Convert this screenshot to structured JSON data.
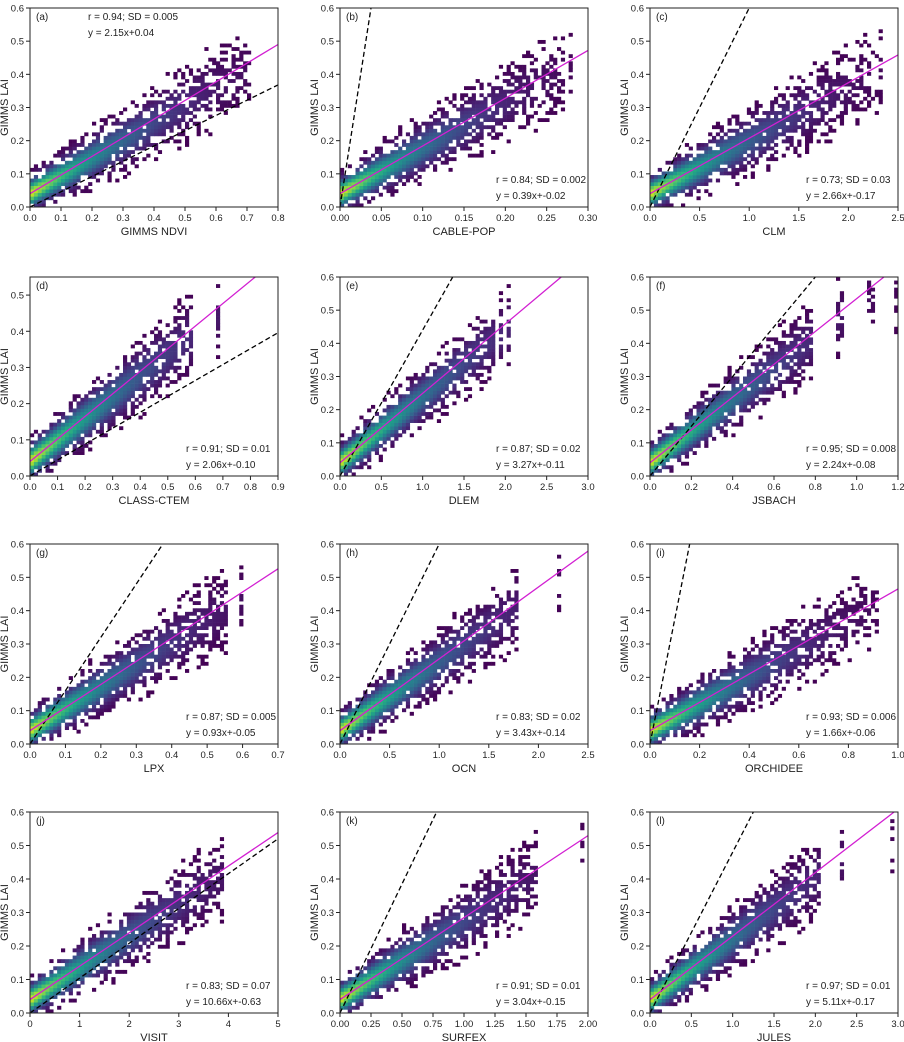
{
  "chart_data": [
    {
      "type": "heatmap",
      "panel": "(a)",
      "xlabel": "GIMMS NDVI",
      "ylabel": "GIMMS LAI",
      "xlim": [
        0,
        0.8
      ],
      "ylim": [
        0,
        0.6
      ],
      "xticks": [
        "0.0",
        "0.1",
        "0.2",
        "0.3",
        "0.4",
        "0.5",
        "0.6",
        "0.7",
        "0.8"
      ],
      "yticks": [
        "0.0",
        "0.1",
        "0.2",
        "0.3",
        "0.4",
        "0.5",
        "0.6"
      ],
      "r": "r = 0.94;  SD = 0.005",
      "fit": "y = 2.15x+0.04",
      "stats_position": "top-left",
      "slope": 2.15,
      "intercept": 0.04,
      "dashed_slope": 0.46,
      "dashed_intercept": 0,
      "grid": false
    },
    {
      "type": "heatmap",
      "panel": "(b)",
      "xlabel": "CABLE-POP",
      "ylabel": "GIMMS LAI",
      "xlim": [
        0,
        0.3
      ],
      "ylim": [
        0,
        0.6
      ],
      "xticks": [
        "0.00",
        "0.05",
        "0.10",
        "0.15",
        "0.20",
        "0.25",
        "0.30"
      ],
      "yticks": [
        "0.0",
        "0.1",
        "0.2",
        "0.3",
        "0.4",
        "0.5",
        "0.6"
      ],
      "r": "r = 0.84;  SD = 0.002",
      "fit": "y = 0.39x+-0.02",
      "stats_position": "bottom-right",
      "slope": 0.39,
      "intercept": -0.02,
      "dashed_slope": 16,
      "dashed_intercept": 0,
      "grid": false
    },
    {
      "type": "heatmap",
      "panel": "(c)",
      "xlabel": "CLM",
      "ylabel": "GIMMS LAI",
      "xlim": [
        0,
        2.5
      ],
      "ylim": [
        0,
        0.6
      ],
      "xticks": [
        "0.0",
        "0.5",
        "1.0",
        "1.5",
        "2.0",
        "2.5"
      ],
      "yticks": [
        "0.0",
        "0.1",
        "0.2",
        "0.3",
        "0.4",
        "0.5",
        "0.6"
      ],
      "r": "r = 0.73;  SD = 0.03",
      "fit": "y = 2.66x+-0.17",
      "stats_position": "bottom-right",
      "slope": 2.66,
      "intercept": -0.17,
      "dashed_slope": 0.6,
      "dashed_intercept": 0,
      "grid": false
    },
    {
      "type": "heatmap",
      "panel": "(d)",
      "xlabel": "CLASS-CTEM",
      "ylabel": "GIMMS LAI",
      "xlim": [
        0,
        0.9
      ],
      "ylim": [
        0,
        0.55
      ],
      "xticks": [
        "0.0",
        "0.1",
        "0.2",
        "0.3",
        "0.4",
        "0.5",
        "0.6",
        "0.7",
        "0.8",
        "0.9"
      ],
      "yticks": [
        "0.0",
        "0.1",
        "0.2",
        "0.3",
        "0.4",
        "0.5"
      ],
      "r": "r = 0.91;  SD = 0.01",
      "fit": "y = 2.06x+-0.10",
      "stats_position": "bottom-right",
      "slope": 2.06,
      "intercept": -0.1,
      "dashed_slope": 0.44,
      "dashed_intercept": 0,
      "grid": false
    },
    {
      "type": "heatmap",
      "panel": "(e)",
      "xlabel": "DLEM",
      "ylabel": "GIMMS LAI",
      "xlim": [
        0,
        3.0
      ],
      "ylim": [
        0,
        0.6
      ],
      "xticks": [
        "0.0",
        "0.5",
        "1.0",
        "1.5",
        "2.0",
        "2.5",
        "3.0"
      ],
      "yticks": [
        "0.0",
        "0.1",
        "0.2",
        "0.3",
        "0.4",
        "0.5",
        "0.6"
      ],
      "r": "r = 0.87;  SD = 0.02",
      "fit": "y = 3.27x+-0.11",
      "stats_position": "bottom-right",
      "slope": 3.27,
      "intercept": -0.11,
      "dashed_slope": 0.44,
      "dashed_intercept": 0,
      "grid": false
    },
    {
      "type": "heatmap",
      "panel": "(f)",
      "xlabel": "JSBACH",
      "ylabel": "GIMMS LAI",
      "xlim": [
        0,
        1.2
      ],
      "ylim": [
        0,
        0.6
      ],
      "xticks": [
        "0.0",
        "0.2",
        "0.4",
        "0.6",
        "0.8",
        "1.0",
        "1.2"
      ],
      "yticks": [
        "0.0",
        "0.1",
        "0.2",
        "0.3",
        "0.4",
        "0.5",
        "0.6"
      ],
      "r": "r = 0.95;  SD = 0.008",
      "fit": "y = 2.24x+-0.08",
      "stats_position": "bottom-right",
      "slope": 2.24,
      "intercept": -0.08,
      "dashed_slope": 0.75,
      "dashed_intercept": 0,
      "grid": false
    },
    {
      "type": "heatmap",
      "panel": "(g)",
      "xlabel": "LPX",
      "ylabel": "GIMMS LAI",
      "xlim": [
        0,
        0.7
      ],
      "ylim": [
        0,
        0.6
      ],
      "xticks": [
        "0.0",
        "0.1",
        "0.2",
        "0.3",
        "0.4",
        "0.5",
        "0.6",
        "0.7"
      ],
      "yticks": [
        "0.0",
        "0.1",
        "0.2",
        "0.3",
        "0.4",
        "0.5",
        "0.6"
      ],
      "r": "r = 0.87;  SD = 0.005",
      "fit": "y = 0.93x+-0.05",
      "stats_position": "bottom-right",
      "slope": 0.93,
      "intercept": -0.05,
      "dashed_slope": 1.6,
      "dashed_intercept": 0,
      "grid": false
    },
    {
      "type": "heatmap",
      "panel": "(h)",
      "xlabel": "OCN",
      "ylabel": "GIMMS LAI",
      "xlim": [
        0,
        2.5
      ],
      "ylim": [
        0,
        0.6
      ],
      "xticks": [
        "0.0",
        "0.5",
        "1.0",
        "1.5",
        "2.0",
        "2.5"
      ],
      "yticks": [
        "0.0",
        "0.1",
        "0.2",
        "0.3",
        "0.4",
        "0.5",
        "0.6"
      ],
      "r": "r = 0.83;  SD = 0.02",
      "fit": "y = 3.43x+-0.14",
      "stats_position": "bottom-right",
      "slope": 3.43,
      "intercept": -0.14,
      "dashed_slope": 0.6,
      "dashed_intercept": 0,
      "grid": false
    },
    {
      "type": "heatmap",
      "panel": "(i)",
      "xlabel": "ORCHIDEE",
      "ylabel": "GIMMS LAI",
      "xlim": [
        0,
        1.0
      ],
      "ylim": [
        0,
        0.6
      ],
      "xticks": [
        "0.0",
        "0.2",
        "0.4",
        "0.6",
        "0.8",
        "1.0"
      ],
      "yticks": [
        "0.0",
        "0.1",
        "0.2",
        "0.3",
        "0.4",
        "0.5",
        "0.6"
      ],
      "r": "r = 0.93;  SD = 0.006",
      "fit": "y = 1.66x+-0.06",
      "stats_position": "bottom-right",
      "slope": 1.66,
      "intercept": -0.06,
      "dashed_slope": 3.75,
      "dashed_intercept": 0,
      "grid": false
    },
    {
      "type": "heatmap",
      "panel": "(j)",
      "xlabel": "VISIT",
      "ylabel": "GIMMS LAI",
      "xlim": [
        0,
        5
      ],
      "ylim": [
        0,
        0.6
      ],
      "xticks": [
        "0",
        "1",
        "2",
        "3",
        "4",
        "5"
      ],
      "yticks": [
        "0.0",
        "0.1",
        "0.2",
        "0.3",
        "0.4",
        "0.5",
        "0.6"
      ],
      "r": "r = 0.83;  SD = 0.07",
      "fit": "y = 10.66x+-0.63",
      "stats_position": "bottom-right",
      "slope": 10.66,
      "intercept": -0.63,
      "dashed_slope": 0.104,
      "dashed_intercept": 0,
      "grid": false
    },
    {
      "type": "heatmap",
      "panel": "(k)",
      "xlabel": "SURFEX",
      "ylabel": "GIMMS LAI",
      "xlim": [
        0,
        2.0
      ],
      "ylim": [
        0,
        0.6
      ],
      "xticks": [
        "0.00",
        "0.25",
        "0.50",
        "0.75",
        "1.00",
        "1.25",
        "1.50",
        "1.75",
        "2.00"
      ],
      "yticks": [
        "0.0",
        "0.1",
        "0.2",
        "0.3",
        "0.4",
        "0.5",
        "0.6"
      ],
      "r": "r = 0.91;  SD = 0.01",
      "fit": "y = 3.04x+-0.15",
      "stats_position": "bottom-right",
      "slope": 3.04,
      "intercept": -0.15,
      "dashed_slope": 0.77,
      "dashed_intercept": 0,
      "grid": false
    },
    {
      "type": "heatmap",
      "panel": "(l)",
      "xlabel": "JULES",
      "ylabel": "GIMMS LAI",
      "xlim": [
        0,
        3.0
      ],
      "ylim": [
        0,
        0.6
      ],
      "xticks": [
        "0.0",
        "0.5",
        "1.0",
        "1.5",
        "2.0",
        "2.5",
        "3.0"
      ],
      "yticks": [
        "0.0",
        "0.1",
        "0.2",
        "0.3",
        "0.4",
        "0.5",
        "0.6"
      ],
      "r": "r = 0.97;  SD = 0.01",
      "fit": "y = 5.11x+-0.17",
      "stats_position": "bottom-right",
      "slope": 5.11,
      "intercept": -0.17,
      "dashed_slope": 0.48,
      "dashed_intercept": 0,
      "grid": false
    }
  ],
  "colors": {
    "background": "#ffffff",
    "axis": "#222222",
    "fit_line": "#d21fd2",
    "dashed_line": "#000000",
    "density_low": "#440154",
    "density_mid": "#21918c",
    "density_high": "#fde725"
  }
}
